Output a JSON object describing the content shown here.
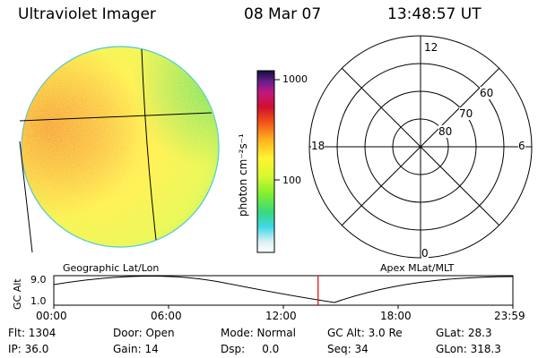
{
  "header": {
    "title": "Ultraviolet Imager",
    "date": "08 Mar 07",
    "time": "13:48:57 UT"
  },
  "colorbar": {
    "label": "photon cm⁻²s⁻¹",
    "ticks": [
      {
        "label": "1000",
        "value": 1000
      },
      {
        "label": "100",
        "value": 100
      }
    ]
  },
  "polar_plot": {
    "mlt_labels": {
      "top": "12",
      "left": "18",
      "right": "6",
      "bottom": "0"
    },
    "lat_labels": [
      "60",
      "70",
      "80"
    ]
  },
  "timeline": {
    "left_title": "Geographic Lat/Lon",
    "right_title": "Apex MLat/MLT",
    "yaxis_label": "GC Alt",
    "y_ticks": [
      "9.0",
      "1.0"
    ],
    "x_ticks": [
      "00:00",
      "06:00",
      "12:00",
      "18:00",
      "23:59"
    ],
    "marker_time": "13:49",
    "marker_color": "#e00000"
  },
  "status": {
    "flt": "Flt: 1304",
    "door": "Door: Open",
    "mode": "Mode: Normal",
    "gcalt": "GC Alt: 3.0 Re",
    "glat": "GLat: 28.3",
    "ip": "IP: 36.0",
    "gain": "Gain: 14",
    "dsp": "Dsp:     0.0",
    "seq": "Seq: 34",
    "glon": "GLon: 318.3"
  }
}
